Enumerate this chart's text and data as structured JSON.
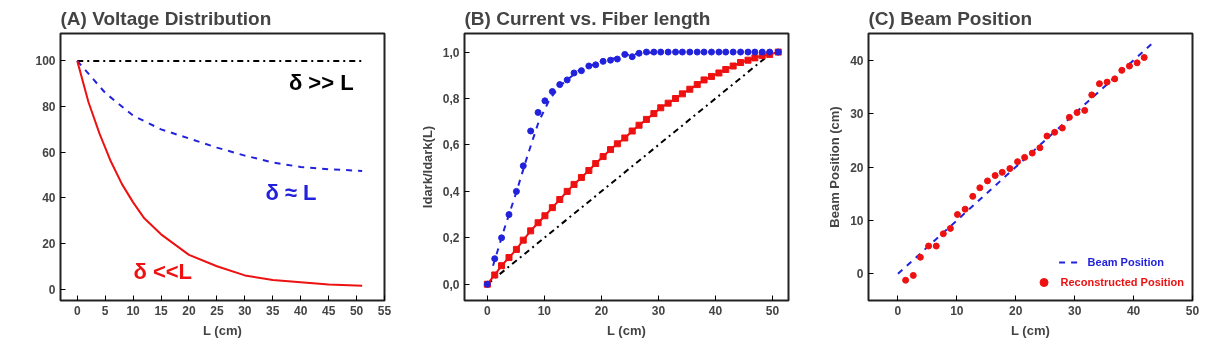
{
  "chart_data": [
    {
      "type": "line",
      "title": "(A) Voltage Distribution",
      "xlabel": "L (cm)",
      "xlim": [
        -3,
        55
      ],
      "ylim": [
        -5,
        112
      ],
      "xticks": [
        0,
        5,
        10,
        15,
        20,
        25,
        30,
        35,
        40,
        45,
        50,
        55
      ],
      "yticks": [
        0,
        20,
        40,
        60,
        80,
        100
      ],
      "grid": false,
      "series": [
        {
          "name": "δ >> L",
          "color": "#000000",
          "line_style": "dashdot",
          "x": [
            0,
            51
          ],
          "values": [
            100,
            100
          ]
        },
        {
          "name": "δ ≈ L",
          "color": "#2222dd",
          "line_style": "dashed",
          "x": [
            0,
            5,
            10,
            15,
            20,
            25,
            30,
            35,
            40,
            45,
            51
          ],
          "values": [
            100,
            86,
            76,
            70,
            66,
            62,
            58.5,
            55.5,
            53.5,
            52.5,
            51.8
          ]
        },
        {
          "name": "δ <<L",
          "color": "#ee1111",
          "line_style": "solid",
          "x": [
            0,
            2,
            4,
            6,
            8,
            10,
            12,
            15,
            20,
            25,
            30,
            35,
            40,
            45,
            51
          ],
          "values": [
            100,
            82,
            68,
            56,
            46,
            38,
            31,
            24,
            15,
            10,
            6,
            4,
            3,
            2,
            1.5
          ]
        }
      ]
    },
    {
      "type": "line",
      "title": "(B) Current vs. Fiber length",
      "xlabel": "L (cm)",
      "ylabel": "Idark/Idark(L)",
      "xlim": [
        -4,
        52.8
      ],
      "ylim": [
        -0.07,
        1.08
      ],
      "xticks": [
        0,
        10,
        20,
        30,
        40,
        50
      ],
      "yticks": [
        {
          "value": 0,
          "label": "0,0"
        },
        {
          "value": 0.2,
          "label": "0,2"
        },
        {
          "value": 0.4,
          "label": "0,4"
        },
        {
          "value": 0.6,
          "label": "0,6"
        },
        {
          "value": 0.8,
          "label": "0,8"
        },
        {
          "value": 1,
          "label": "1,0"
        }
      ],
      "grid": false,
      "series": [
        {
          "type": "line",
          "color": "#000000",
          "line_style": "dashdot",
          "x": [
            0,
            50
          ],
          "values": [
            0,
            1
          ]
        },
        {
          "type": "line",
          "color": "#2222dd",
          "line_style": "dashed",
          "x": [
            1,
            3,
            5,
            7,
            9,
            11,
            13,
            16,
            20,
            25,
            30
          ],
          "values": [
            0.08,
            0.24,
            0.39,
            0.55,
            0.7,
            0.8,
            0.86,
            0.92,
            0.96,
            0.99,
            1.0
          ]
        },
        {
          "type": "line",
          "color": "#ee1111",
          "marker": "square",
          "line_style": "solid",
          "x": [
            0,
            1.3,
            2.5,
            3.8,
            5.1,
            6.3,
            7.6,
            8.9,
            10.1,
            11.4,
            12.7,
            14,
            15.2,
            16.5,
            17.8,
            19,
            20.3,
            21.6,
            22.8,
            24.1,
            25.4,
            26.6,
            27.9,
            29.2,
            30.4,
            31.7,
            33,
            34.2,
            35.5,
            36.8,
            38,
            39.3,
            40.6,
            41.8,
            43.1,
            44.4,
            45.7,
            46.9,
            48.2,
            49.5,
            51
          ],
          "values": [
            0,
            0.04,
            0.08,
            0.115,
            0.15,
            0.19,
            0.23,
            0.265,
            0.295,
            0.33,
            0.365,
            0.4,
            0.43,
            0.46,
            0.49,
            0.52,
            0.55,
            0.58,
            0.605,
            0.63,
            0.66,
            0.685,
            0.71,
            0.735,
            0.76,
            0.78,
            0.8,
            0.82,
            0.84,
            0.86,
            0.88,
            0.895,
            0.91,
            0.925,
            0.94,
            0.955,
            0.965,
            0.975,
            0.985,
            0.99,
            1.0
          ]
        },
        {
          "type": "scatter",
          "color": "#2222dd",
          "marker": "circle",
          "x": [
            0,
            1.3,
            2.5,
            3.8,
            5.1,
            6.3,
            7.6,
            8.9,
            10.1,
            11.4,
            12.7,
            14,
            15.2,
            16.5,
            17.8,
            19,
            20.3,
            21.6,
            22.8,
            24.1,
            25.4,
            26.6,
            27.9,
            29.2,
            30.4,
            31.7,
            33,
            34.2,
            35.5,
            36.8,
            38,
            39.3,
            40.6,
            41.8,
            43.1,
            44.4,
            45.7,
            46.9,
            48.2,
            49.5,
            51
          ],
          "values": [
            0,
            0.11,
            0.2,
            0.3,
            0.4,
            0.51,
            0.66,
            0.74,
            0.79,
            0.83,
            0.86,
            0.88,
            0.91,
            0.92,
            0.94,
            0.945,
            0.96,
            0.965,
            0.97,
            0.99,
            0.98,
            0.995,
            1.0,
            1.0,
            1.0,
            1.0,
            1.0,
            1.0,
            1.0,
            1.0,
            1.0,
            1.0,
            1.0,
            1.0,
            1.0,
            1.0,
            1.0,
            1.0,
            1.0,
            1.0,
            1.0
          ]
        }
      ]
    },
    {
      "type": "scatter",
      "title": "(C) Beam Position",
      "xlabel": "L (cm)",
      "ylabel": "Beam Position (cm)",
      "xlim": [
        -5,
        50
      ],
      "ylim": [
        -5,
        45
      ],
      "xticks": [
        0,
        10,
        20,
        30,
        40,
        50
      ],
      "yticks": [
        0,
        10,
        20,
        30,
        40
      ],
      "grid": false,
      "legend": "bottom right",
      "series": [
        {
          "type": "line",
          "name": "Beam Position",
          "color": "#2222dd",
          "line_style": "dashed",
          "x": [
            0,
            43
          ],
          "values": [
            0,
            43
          ]
        },
        {
          "type": "scatter",
          "name": "Reconstructed Position",
          "color": "#ee1111",
          "marker": "circle",
          "x": [
            1.3,
            2.6,
            3.8,
            5.2,
            6.5,
            7.7,
            8.9,
            10.1,
            11.4,
            12.7,
            13.9,
            15.2,
            16.5,
            17.7,
            19,
            20.3,
            21.5,
            22.8,
            24.1,
            25.3,
            26.6,
            27.9,
            29.1,
            30.4,
            31.7,
            32.9,
            34.2,
            35.5,
            36.8,
            38,
            39.3,
            40.6,
            41.8
          ],
          "values": [
            -1.2,
            -0.3,
            3.1,
            5.2,
            5.2,
            7.5,
            8.5,
            11.1,
            12.1,
            14.5,
            16.1,
            17.4,
            18.4,
            19.0,
            19.7,
            21.0,
            21.8,
            22.6,
            23.6,
            25.8,
            26.5,
            27.3,
            29.3,
            30.2,
            30.6,
            33.5,
            35.6,
            35.9,
            36.5,
            38.1,
            38.9,
            39.5,
            40.5
          ]
        }
      ]
    }
  ]
}
